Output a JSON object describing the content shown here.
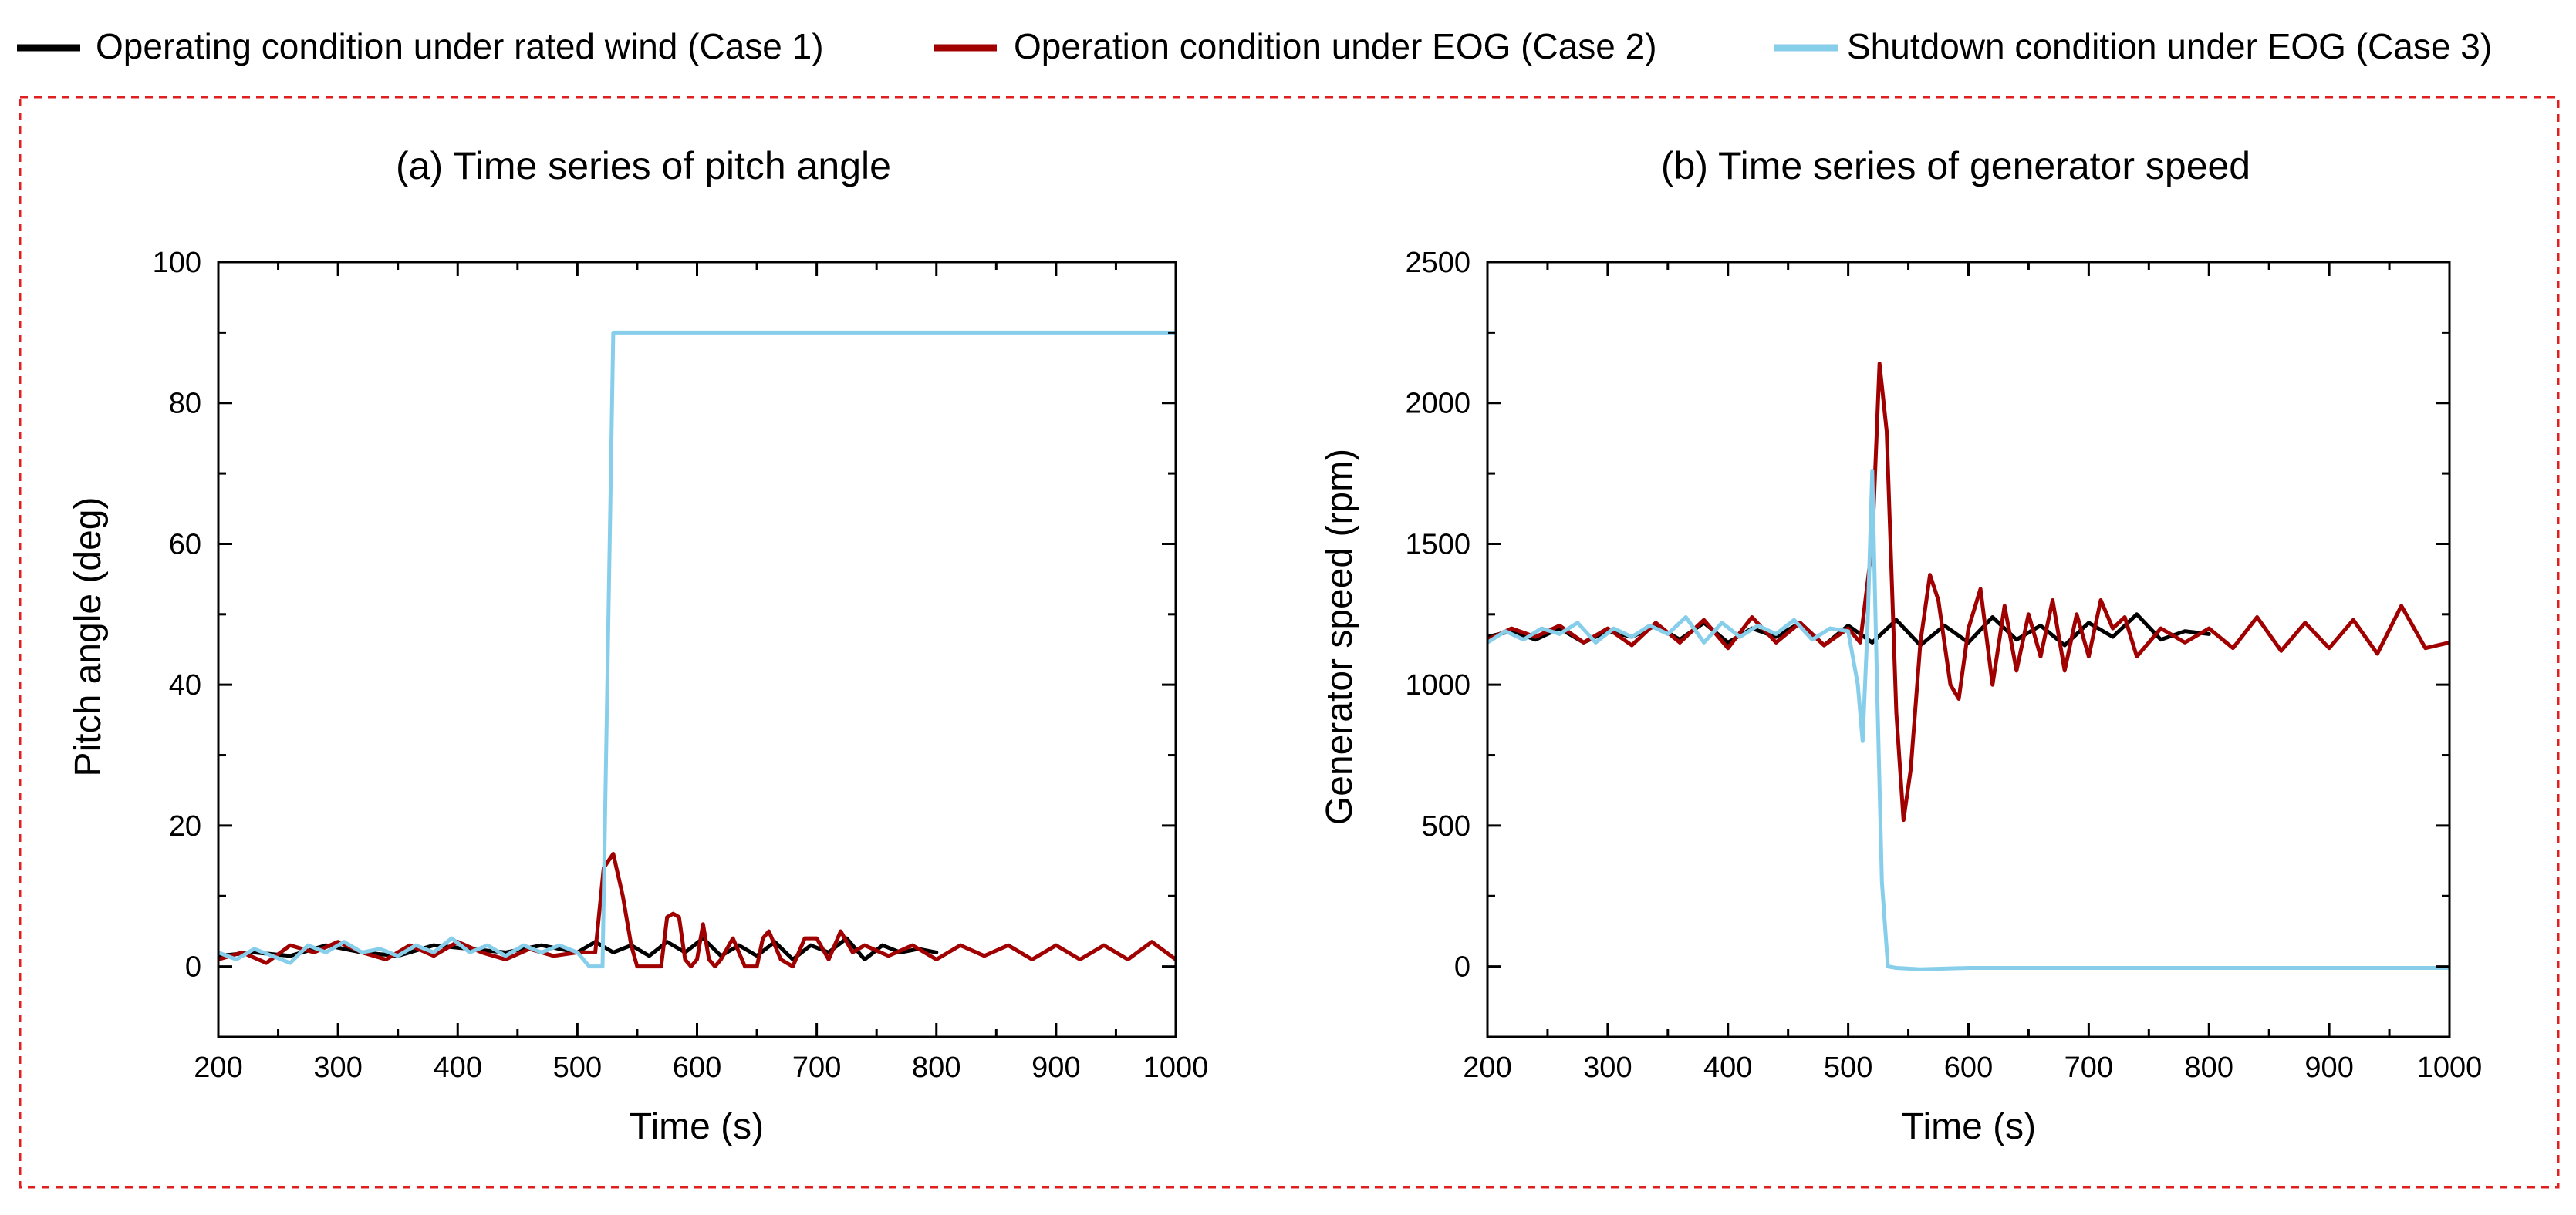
{
  "legend": {
    "placement": "top",
    "entries": [
      {
        "label": "Operating condition under rated wind (Case 1)",
        "color": "#000000"
      },
      {
        "label": "Operation condition under EOG (Case 2)",
        "color": "#a00000"
      },
      {
        "label": "Shutdown condition under EOG (Case 3)",
        "color": "#87ceeb"
      }
    ]
  },
  "chart_data": [
    {
      "type": "line",
      "title": "(a) Time series of pitch angle",
      "xlabel": "Time (s)",
      "ylabel": "Pitch angle (deg)",
      "xlim": [
        200,
        1000
      ],
      "ylim": [
        -10,
        100
      ],
      "xticks": [
        200,
        300,
        400,
        500,
        600,
        700,
        800,
        900,
        1000
      ],
      "yticks": [
        0,
        20,
        40,
        60,
        80,
        100
      ],
      "grid": false,
      "series": [
        {
          "name": "Operating condition under rated wind (Case 1)",
          "color": "#000000",
          "x": [
            200,
            230,
            260,
            290,
            320,
            350,
            380,
            410,
            440,
            470,
            500,
            515,
            530,
            545,
            560,
            575,
            590,
            605,
            620,
            635,
            650,
            665,
            680,
            695,
            710,
            725,
            740,
            755,
            770,
            785,
            800
          ],
          "y": [
            1.5,
            2,
            1.5,
            3,
            2,
            1.5,
            3,
            2.5,
            2,
            3,
            2,
            3.5,
            2,
            3,
            1.5,
            3.5,
            2,
            4,
            1.5,
            3,
            1.5,
            3.5,
            1,
            3,
            2,
            4,
            1,
            3,
            2,
            2.5,
            2
          ]
        },
        {
          "name": "Operation condition under EOG (Case 2)",
          "color": "#a00000",
          "x": [
            200,
            220,
            240,
            260,
            280,
            300,
            320,
            340,
            360,
            380,
            400,
            420,
            440,
            460,
            480,
            500,
            515,
            522,
            530,
            538,
            545,
            550,
            560,
            570,
            575,
            580,
            585,
            590,
            595,
            600,
            605,
            610,
            615,
            620,
            630,
            640,
            650,
            655,
            660,
            670,
            680,
            690,
            700,
            710,
            720,
            730,
            740,
            760,
            780,
            800,
            820,
            840,
            860,
            880,
            900,
            920,
            940,
            960,
            980,
            1000
          ],
          "y": [
            1,
            2,
            0.5,
            3,
            2,
            3.5,
            2,
            1,
            3,
            1.5,
            3.5,
            2,
            1,
            2.5,
            1.5,
            2,
            2,
            14,
            16,
            10,
            3,
            0,
            0,
            0,
            7,
            7.5,
            7,
            1,
            0,
            1,
            6,
            1,
            0,
            1,
            4,
            0,
            0,
            4,
            5,
            1,
            0,
            4,
            4,
            1,
            5,
            2,
            3,
            1.5,
            3,
            1,
            3,
            1.5,
            3,
            1,
            3,
            1,
            3,
            1,
            3.5,
            1
          ]
        },
        {
          "name": "Shutdown condition under EOG (Case 3)",
          "color": "#87ceeb",
          "x": [
            200,
            215,
            230,
            245,
            260,
            275,
            290,
            305,
            320,
            335,
            350,
            365,
            380,
            395,
            410,
            425,
            440,
            455,
            470,
            485,
            500,
            510,
            515,
            521,
            530,
            550,
            600,
            700,
            800,
            900,
            1000
          ],
          "y": [
            2,
            1,
            2.5,
            1.5,
            0.5,
            3,
            2,
            3.5,
            2,
            2.5,
            1.5,
            3,
            2,
            4,
            2,
            3,
            1.5,
            3,
            2,
            3,
            2,
            0,
            0,
            0,
            90,
            90,
            90,
            90,
            90,
            90,
            90
          ]
        }
      ]
    },
    {
      "type": "line",
      "title": "(b) Time series of generator speed",
      "xlabel": "Time (s)",
      "ylabel": "Generator speed (rpm)",
      "xlim": [
        200,
        1000
      ],
      "ylim": [
        -250,
        2500
      ],
      "xticks": [
        200,
        300,
        400,
        500,
        600,
        700,
        800,
        900,
        1000
      ],
      "yticks": [
        0,
        500,
        1000,
        1500,
        2000,
        2500
      ],
      "grid": false,
      "series": [
        {
          "name": "Operating condition under rated wind (Case 1)",
          "color": "#000000",
          "x": [
            200,
            220,
            240,
            260,
            280,
            300,
            320,
            340,
            360,
            380,
            400,
            420,
            440,
            460,
            480,
            500,
            520,
            540,
            560,
            580,
            600,
            620,
            640,
            660,
            680,
            700,
            720,
            740,
            760,
            780,
            800
          ],
          "y": [
            1170,
            1190,
            1160,
            1200,
            1150,
            1190,
            1170,
            1210,
            1160,
            1220,
            1150,
            1200,
            1170,
            1220,
            1140,
            1210,
            1150,
            1230,
            1140,
            1210,
            1150,
            1240,
            1160,
            1210,
            1140,
            1220,
            1170,
            1250,
            1160,
            1190,
            1180
          ]
        },
        {
          "name": "Operation condition under EOG (Case 2)",
          "color": "#a00000",
          "x": [
            200,
            220,
            240,
            260,
            280,
            300,
            320,
            340,
            360,
            380,
            400,
            420,
            440,
            460,
            480,
            500,
            510,
            520,
            526,
            532,
            540,
            546,
            552,
            560,
            568,
            575,
            585,
            592,
            600,
            610,
            620,
            630,
            640,
            650,
            660,
            670,
            680,
            690,
            700,
            710,
            720,
            730,
            740,
            760,
            780,
            800,
            820,
            840,
            860,
            880,
            900,
            920,
            940,
            960,
            980,
            1000
          ],
          "y": [
            1160,
            1200,
            1170,
            1210,
            1150,
            1200,
            1140,
            1220,
            1150,
            1230,
            1130,
            1240,
            1150,
            1220,
            1140,
            1200,
            1150,
            1500,
            2140,
            1900,
            900,
            520,
            700,
            1150,
            1390,
            1300,
            1000,
            950,
            1200,
            1340,
            1000,
            1280,
            1050,
            1250,
            1100,
            1300,
            1050,
            1250,
            1100,
            1300,
            1200,
            1240,
            1100,
            1200,
            1150,
            1200,
            1130,
            1240,
            1120,
            1220,
            1130,
            1230,
            1110,
            1280,
            1130,
            1150
          ]
        },
        {
          "name": "Shutdown condition under EOG (Case 3)",
          "color": "#87ceeb",
          "x": [
            200,
            215,
            230,
            245,
            260,
            275,
            290,
            305,
            320,
            335,
            350,
            365,
            380,
            395,
            410,
            425,
            440,
            455,
            470,
            485,
            500,
            508,
            512,
            516,
            520,
            524,
            528,
            533,
            540,
            560,
            600,
            700,
            800,
            900,
            1000
          ],
          "y": [
            1150,
            1190,
            1160,
            1200,
            1180,
            1220,
            1150,
            1200,
            1170,
            1210,
            1180,
            1240,
            1150,
            1220,
            1170,
            1210,
            1180,
            1230,
            1160,
            1200,
            1190,
            1000,
            800,
            1200,
            1760,
            1000,
            300,
            0,
            -5,
            -10,
            -5,
            -5,
            -5,
            -5,
            -5
          ]
        }
      ]
    }
  ]
}
